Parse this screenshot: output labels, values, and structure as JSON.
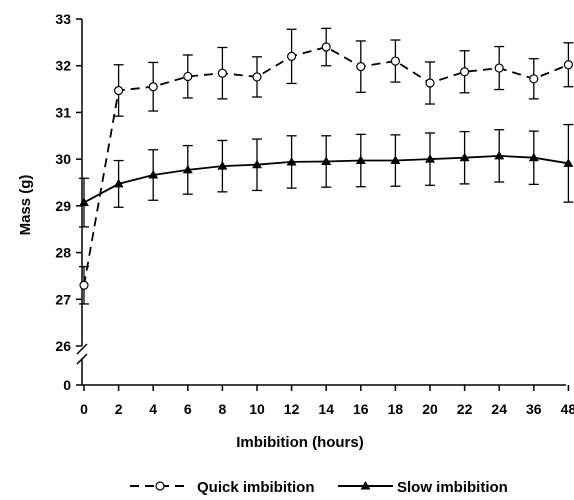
{
  "chart_data": {
    "type": "line",
    "ylabel": "Mass (g)",
    "xlabel": "Imbibition (hours)",
    "categories": [
      "0",
      "2",
      "4",
      "6",
      "8",
      "10",
      "12",
      "14",
      "16",
      "18",
      "20",
      "22",
      "24",
      "36",
      "48"
    ],
    "y_ticks": [
      "0",
      "26",
      "27",
      "28",
      "29",
      "30",
      "31",
      "32",
      "33"
    ],
    "y_axis_break": {
      "from": 0,
      "to": 26
    },
    "ylim": [
      26,
      33
    ],
    "grid": false,
    "legend_position": "bottom",
    "series": [
      {
        "name": "Quick imbibition",
        "marker": "open-circle",
        "line_style": "dashed",
        "values": [
          27.3,
          31.47,
          31.55,
          31.77,
          31.84,
          31.76,
          32.2,
          32.4,
          31.98,
          32.1,
          31.63,
          31.87,
          31.95,
          31.72,
          32.02
        ],
        "error": [
          0.4,
          0.55,
          0.52,
          0.46,
          0.55,
          0.43,
          0.58,
          0.4,
          0.55,
          0.45,
          0.45,
          0.45,
          0.46,
          0.43,
          0.47
        ]
      },
      {
        "name": "Slow imbibition",
        "marker": "filled-triangle",
        "line_style": "solid",
        "values": [
          29.07,
          29.47,
          29.66,
          29.77,
          29.85,
          29.88,
          29.94,
          29.95,
          29.97,
          29.97,
          30.0,
          30.03,
          30.07,
          30.03,
          29.91
        ],
        "error": [
          0.52,
          0.5,
          0.54,
          0.52,
          0.55,
          0.55,
          0.56,
          0.55,
          0.56,
          0.55,
          0.56,
          0.56,
          0.56,
          0.57,
          0.83
        ]
      }
    ]
  }
}
